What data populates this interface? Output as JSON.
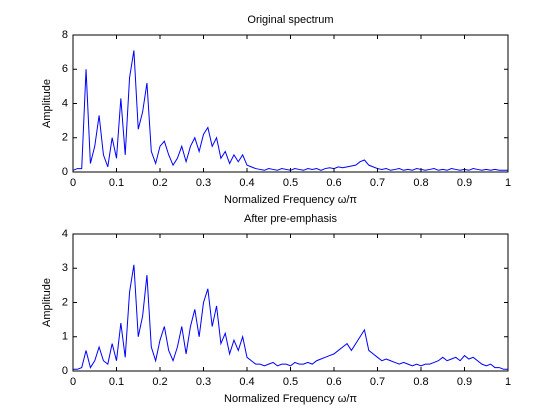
{
  "chart_data": [
    {
      "type": "line",
      "title": "Original spectrum",
      "xlabel": "Normalized Frequency ω/π",
      "ylabel": "Amplitude",
      "color": "#0000ff",
      "x": [
        0,
        0.01,
        0.02,
        0.03,
        0.04,
        0.05,
        0.06,
        0.07,
        0.08,
        0.09,
        0.1,
        0.11,
        0.12,
        0.13,
        0.14,
        0.15,
        0.16,
        0.17,
        0.18,
        0.19,
        0.2,
        0.21,
        0.22,
        0.23,
        0.24,
        0.25,
        0.26,
        0.27,
        0.28,
        0.29,
        0.3,
        0.31,
        0.32,
        0.33,
        0.34,
        0.35,
        0.36,
        0.37,
        0.38,
        0.39,
        0.4,
        0.41,
        0.42,
        0.43,
        0.44,
        0.45,
        0.46,
        0.47,
        0.48,
        0.49,
        0.5,
        0.51,
        0.52,
        0.53,
        0.54,
        0.55,
        0.56,
        0.57,
        0.58,
        0.59,
        0.6,
        0.61,
        0.62,
        0.63,
        0.64,
        0.65,
        0.66,
        0.67,
        0.68,
        0.69,
        0.7,
        0.71,
        0.72,
        0.73,
        0.74,
        0.75,
        0.76,
        0.77,
        0.78,
        0.79,
        0.8,
        0.81,
        0.82,
        0.83,
        0.84,
        0.85,
        0.86,
        0.87,
        0.88,
        0.89,
        0.9,
        0.91,
        0.92,
        0.93,
        0.94,
        0.95,
        0.96,
        0.97,
        0.98,
        0.99,
        1
      ],
      "values": [
        0.1,
        0.2,
        0.2,
        6.0,
        0.5,
        1.5,
        3.3,
        1.0,
        0.3,
        2.0,
        0.8,
        4.3,
        1.0,
        5.5,
        7.1,
        2.5,
        3.5,
        5.2,
        1.2,
        0.5,
        1.5,
        1.8,
        1.0,
        0.4,
        0.8,
        1.5,
        0.6,
        1.5,
        2.0,
        1.2,
        2.2,
        2.6,
        1.5,
        2.0,
        0.8,
        1.2,
        0.5,
        1.0,
        0.6,
        1.0,
        0.4,
        0.3,
        0.2,
        0.15,
        0.1,
        0.2,
        0.15,
        0.1,
        0.2,
        0.15,
        0.1,
        0.2,
        0.15,
        0.1,
        0.2,
        0.15,
        0.2,
        0.1,
        0.2,
        0.25,
        0.2,
        0.3,
        0.25,
        0.3,
        0.35,
        0.4,
        0.6,
        0.7,
        0.4,
        0.3,
        0.2,
        0.15,
        0.2,
        0.1,
        0.15,
        0.2,
        0.1,
        0.15,
        0.1,
        0.2,
        0.15,
        0.1,
        0.15,
        0.2,
        0.1,
        0.15,
        0.1,
        0.2,
        0.15,
        0.1,
        0.15,
        0.1,
        0.2,
        0.15,
        0.1,
        0.15,
        0.1,
        0.15,
        0.1,
        0.1,
        0.1
      ],
      "xlim": [
        0,
        1
      ],
      "xticks": [
        0,
        0.1,
        0.2,
        0.3,
        0.4,
        0.5,
        0.6,
        0.7,
        0.8,
        0.9,
        1
      ],
      "ylim": [
        0,
        8
      ],
      "yticks": [
        0,
        2,
        4,
        6,
        8
      ]
    },
    {
      "type": "line",
      "title": "After pre-emphasis",
      "xlabel": "Normalized Frequency ω/π",
      "ylabel": "Amplitude",
      "color": "#0000ff",
      "x": [
        0,
        0.01,
        0.02,
        0.03,
        0.04,
        0.05,
        0.06,
        0.07,
        0.08,
        0.09,
        0.1,
        0.11,
        0.12,
        0.13,
        0.14,
        0.15,
        0.16,
        0.17,
        0.18,
        0.19,
        0.2,
        0.21,
        0.22,
        0.23,
        0.24,
        0.25,
        0.26,
        0.27,
        0.28,
        0.29,
        0.3,
        0.31,
        0.32,
        0.33,
        0.34,
        0.35,
        0.36,
        0.37,
        0.38,
        0.39,
        0.4,
        0.41,
        0.42,
        0.43,
        0.44,
        0.45,
        0.46,
        0.47,
        0.48,
        0.49,
        0.5,
        0.51,
        0.52,
        0.53,
        0.54,
        0.55,
        0.56,
        0.57,
        0.58,
        0.59,
        0.6,
        0.61,
        0.62,
        0.63,
        0.64,
        0.65,
        0.66,
        0.67,
        0.68,
        0.69,
        0.7,
        0.71,
        0.72,
        0.73,
        0.74,
        0.75,
        0.76,
        0.77,
        0.78,
        0.79,
        0.8,
        0.81,
        0.82,
        0.83,
        0.84,
        0.85,
        0.86,
        0.87,
        0.88,
        0.89,
        0.9,
        0.91,
        0.92,
        0.93,
        0.94,
        0.95,
        0.96,
        0.97,
        0.98,
        0.99,
        1
      ],
      "values": [
        0.05,
        0.05,
        0.1,
        0.6,
        0.1,
        0.3,
        0.7,
        0.3,
        0.2,
        0.8,
        0.3,
        1.4,
        0.4,
        2.3,
        3.1,
        1.0,
        1.6,
        2.8,
        0.7,
        0.3,
        0.9,
        1.3,
        0.6,
        0.3,
        0.7,
        1.3,
        0.5,
        1.3,
        1.8,
        1.0,
        2.0,
        2.4,
        1.3,
        1.9,
        0.8,
        1.1,
        0.5,
        0.9,
        0.6,
        1.0,
        0.4,
        0.3,
        0.2,
        0.2,
        0.15,
        0.2,
        0.25,
        0.15,
        0.2,
        0.2,
        0.15,
        0.25,
        0.2,
        0.2,
        0.25,
        0.2,
        0.3,
        0.35,
        0.4,
        0.45,
        0.5,
        0.6,
        0.7,
        0.8,
        0.6,
        0.8,
        1.0,
        1.2,
        0.6,
        0.5,
        0.4,
        0.3,
        0.35,
        0.3,
        0.25,
        0.2,
        0.25,
        0.2,
        0.15,
        0.2,
        0.15,
        0.2,
        0.2,
        0.25,
        0.3,
        0.4,
        0.3,
        0.35,
        0.4,
        0.3,
        0.45,
        0.35,
        0.4,
        0.3,
        0.2,
        0.15,
        0.2,
        0.1,
        0.1,
        0.05,
        0.05
      ],
      "xlim": [
        0,
        1
      ],
      "xticks": [
        0,
        0.1,
        0.2,
        0.3,
        0.4,
        0.5,
        0.6,
        0.7,
        0.8,
        0.9,
        1
      ],
      "ylim": [
        0,
        4
      ],
      "yticks": [
        0,
        1,
        2,
        3,
        4
      ]
    }
  ]
}
